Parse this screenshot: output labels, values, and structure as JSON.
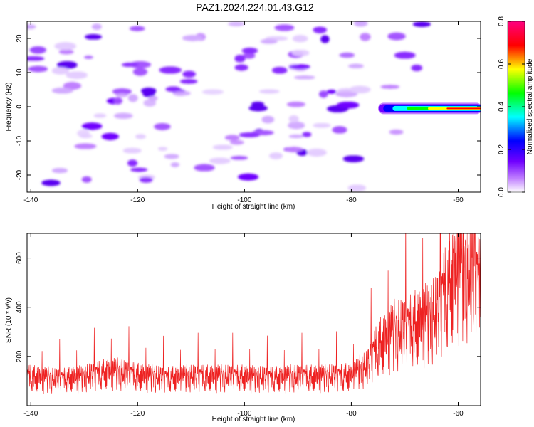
{
  "title": "PAZ1.2024.224.01.43.G12",
  "chart_data": [
    {
      "type": "heatmap",
      "title": "PAZ1.2024.224.01.43.G12",
      "xlabel": "Height of straight line (km)",
      "ylabel": "Frequency (Hz)",
      "xlim": [
        -140.7,
        -55.8
      ],
      "ylim": [
        -25,
        25
      ],
      "xticks": [
        -140,
        -120,
        -100,
        -80,
        -60
      ],
      "yticks": [
        -20,
        -10,
        0,
        10,
        20
      ],
      "colorbar": {
        "label": "Normalized spectral amplitude",
        "range": [
          0,
          0.8
        ],
        "ticks": [
          0.0,
          0.2,
          0.4,
          0.6,
          0.8
        ],
        "colors": [
          "#ffffff",
          "#c080ff",
          "#7000ff",
          "#0000ff",
          "#00ffff",
          "#00ff00",
          "#ffff00",
          "#ff0000",
          "#ff0080"
        ]
      },
      "feature": {
        "description": "strong carrier line near 0 Hz",
        "x_start": -75,
        "x_end": -55.8,
        "frequency": -0.5,
        "peak_amplitude": 0.8
      },
      "grid": false
    },
    {
      "type": "line",
      "xlabel": "Height of straight line (km)",
      "ylabel": "SNR (10 * v/v)",
      "xlim": [
        -140.7,
        -55.8
      ],
      "ylim": [
        0,
        700
      ],
      "xticks": [
        -140,
        -120,
        -100,
        -80,
        -60
      ],
      "yticks": [
        200,
        400,
        600
      ],
      "color": "#ee2222",
      "series": [
        {
          "x": [
            -140,
            -135,
            -130,
            -125,
            -120,
            -115,
            -110,
            -105,
            -100,
            -95,
            -90,
            -85,
            -80,
            -77,
            -75,
            -72,
            -70,
            -68,
            -66,
            -64,
            -62,
            -60,
            -58,
            -56
          ],
          "y": [
            110,
            100,
            110,
            130,
            115,
            105,
            110,
            110,
            110,
            105,
            110,
            110,
            115,
            150,
            230,
            280,
            290,
            310,
            330,
            350,
            450,
            520,
            520,
            450
          ]
        }
      ],
      "grid": false
    }
  ]
}
